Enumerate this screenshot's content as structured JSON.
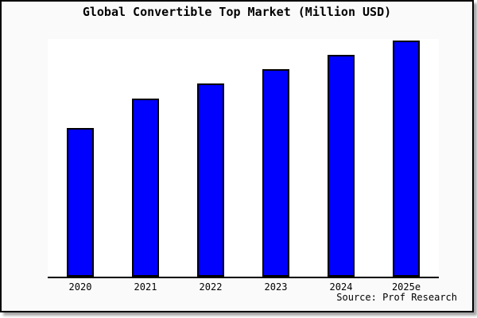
{
  "chart_data": {
    "type": "bar",
    "title": "Global Convertible Top Market (Million USD)",
    "categories": [
      "2020",
      "2021",
      "2022",
      "2023",
      "2024",
      "2025e"
    ],
    "values": [
      62.9,
      75.3,
      81.8,
      88.0,
      94.0,
      100.0
    ],
    "value_basis": "relative units; y-axis is unlabeled in the chart, bars normalized so 2025e = 100",
    "xlabel": "",
    "ylabel": "",
    "grid": false,
    "legend": false,
    "source": "Source: Prof Research",
    "colors": {
      "bar_fill": "#0000ff",
      "bar_border": "#000000",
      "axis_line": "#000000",
      "plot_background": "#ffffff",
      "card_background": "#fafafa",
      "frame_border": "#000000",
      "text": "#000000"
    }
  }
}
